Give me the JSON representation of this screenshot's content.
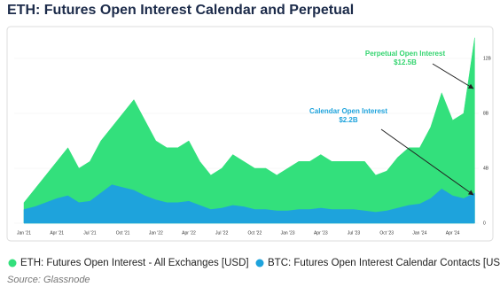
{
  "chart_data": {
    "type": "area",
    "title": "ETH: Futures Open Interest Calendar and Perpetual",
    "categories": [
      "Jan '21",
      null,
      null,
      "Apr '21",
      null,
      null,
      "Jul '21",
      null,
      null,
      "Oct '21",
      null,
      null,
      "Jan '22",
      null,
      null,
      "Apr '22",
      null,
      null,
      "Jul '22",
      null,
      null,
      "Oct '22",
      null,
      null,
      "Jan '23",
      null,
      null,
      "Apr '23",
      null,
      null,
      "Jul '23",
      null,
      null,
      "Oct '23",
      null,
      null,
      "Jan '24",
      null,
      null,
      "Apr '24",
      null,
      null
    ],
    "series": [
      {
        "name": "ETH: Futures Open Interest - All Exchanges [USD]",
        "color": "#33e07c",
        "values": [
          1.5,
          2.5,
          3.5,
          4.5,
          5.5,
          4,
          4.5,
          6,
          7,
          8,
          9,
          7.5,
          6,
          5.5,
          5.5,
          6,
          4.5,
          3.5,
          4,
          5,
          4.5,
          4,
          4,
          3.5,
          4,
          4.5,
          4.5,
          5,
          4.5,
          4.5,
          4.5,
          4.5,
          3.5,
          3.8,
          4.8,
          5.5,
          5.5,
          7,
          9.5,
          7.5,
          8,
          13.5
        ]
      },
      {
        "name": "BTC: Futures Open Interest Calendar Contacts [USD]",
        "color": "#1ea3dc",
        "values": [
          1,
          1.2,
          1.5,
          1.8,
          2,
          1.5,
          1.6,
          2.2,
          2.8,
          2.6,
          2.4,
          2,
          1.7,
          1.5,
          1.5,
          1.6,
          1.3,
          1,
          1.1,
          1.3,
          1.2,
          1,
          1,
          0.9,
          0.9,
          1,
          1,
          1.1,
          1,
          1,
          1,
          0.9,
          0.8,
          0.9,
          1.1,
          1.3,
          1.4,
          1.8,
          2.5,
          2,
          1.8,
          2.2
        ]
      }
    ],
    "ylim": [
      0,
      14
    ],
    "yticks": [
      0,
      {
        "value": 4,
        "label": "4B"
      },
      {
        "value": 8,
        "label": "8B"
      },
      {
        "value": 12,
        "label": "12B"
      }
    ],
    "annotations": [
      {
        "label": "Perpetual Open Interest",
        "value": "$12.5B",
        "color": "#33d46f"
      },
      {
        "label": "Calendar Open Interest",
        "value": "$2.2B",
        "color": "#1ea3dc"
      }
    ],
    "source": "Source: Glassnode"
  }
}
